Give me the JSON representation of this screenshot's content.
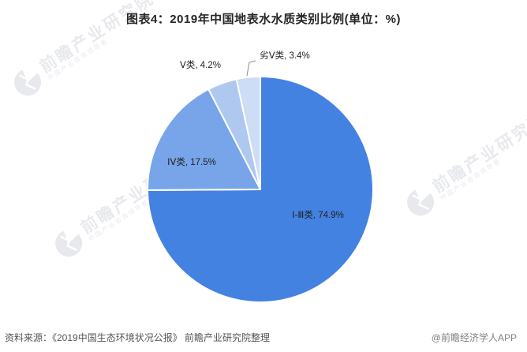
{
  "header": {
    "title": "图表4：2019年中国地表水水质类别比例(单位：%)"
  },
  "chart_data": {
    "type": "pie",
    "title": "图表4：2019年中国地表水水质类别比例(单位：%)",
    "unit": "%",
    "categories": [
      "Ⅰ-Ⅲ类",
      "ⅠⅤ类",
      "Ⅴ类",
      "劣Ⅴ类"
    ],
    "values": [
      74.9,
      17.5,
      4.2,
      3.4
    ],
    "labels": [
      "Ⅰ-Ⅲ类, 74.9%",
      "ⅠⅤ类, 17.5%",
      "Ⅴ类, 4.2%",
      "劣Ⅴ类, 3.4%"
    ],
    "colors": [
      "#4482E2",
      "#78A4EA",
      "#AEC8F0",
      "#CDDDF5"
    ],
    "start_angle": 0,
    "direction": "clockwise",
    "legend": "none",
    "label_placement": [
      "inside",
      "inside",
      "outside",
      "outside"
    ]
  },
  "footer": {
    "source": "资料来源：《2019中国生态环境状况公报》 前瞻产业研究院整理",
    "credit": "@前瞻经济学人APP"
  },
  "watermark": {
    "brand": "前瞻产业研究院",
    "tagline": "中国产业咨询领导者"
  }
}
